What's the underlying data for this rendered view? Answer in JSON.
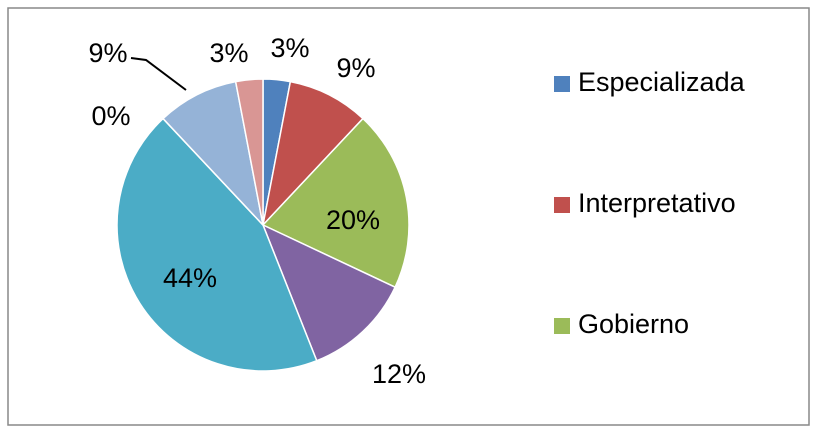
{
  "chart_data": {
    "type": "pie",
    "categories": [
      "Especializada",
      "Interpretativo",
      "Gobierno",
      null,
      null,
      null,
      null,
      null
    ],
    "values": [
      3,
      9,
      20,
      12,
      44,
      0,
      9,
      3
    ],
    "value_labels": [
      "3%",
      "9%",
      "20%",
      "12%",
      "44%",
      "0%",
      "9%",
      "3%"
    ],
    "colors": [
      "#4f81bd",
      "#c0504d",
      "#9bbb59",
      "#8064a2",
      "#4bacc6",
      "#f79646",
      "#95b3d7",
      "#d99694"
    ],
    "legend": "right"
  }
}
